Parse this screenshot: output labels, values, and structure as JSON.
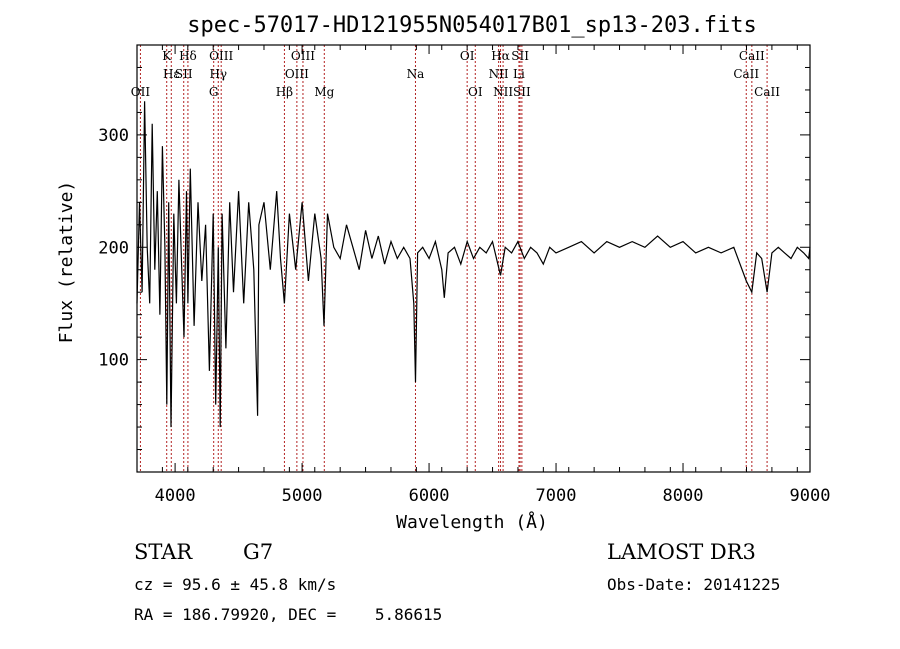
{
  "chart_data": {
    "type": "line",
    "title": "spec-57017-HD121955N054017B01_sp13-203.fits",
    "xlabel": "Wavelength (Å)",
    "ylabel": "Flux (relative)",
    "xlim": [
      3700,
      9000
    ],
    "ylim": [
      0,
      380
    ],
    "xticks": [
      4000,
      5000,
      6000,
      7000,
      8000,
      9000
    ],
    "yticks": [
      100,
      200,
      300
    ],
    "grid": false,
    "line_color": "#000000",
    "marker_color": "#b22222",
    "spectrum": {
      "name": "flux",
      "x": [
        3700,
        3720,
        3740,
        3760,
        3780,
        3800,
        3820,
        3840,
        3860,
        3880,
        3900,
        3920,
        3935,
        3950,
        3968,
        3990,
        4010,
        4030,
        4050,
        4070,
        4090,
        4101,
        4120,
        4150,
        4180,
        4210,
        4240,
        4270,
        4300,
        4320,
        4340,
        4355,
        4370,
        4400,
        4430,
        4460,
        4500,
        4540,
        4580,
        4620,
        4650,
        4660,
        4700,
        4750,
        4800,
        4830,
        4861,
        4900,
        4950,
        5000,
        5050,
        5100,
        5150,
        5173,
        5200,
        5250,
        5300,
        5350,
        5400,
        5450,
        5500,
        5550,
        5600,
        5650,
        5700,
        5750,
        5800,
        5850,
        5880,
        5893,
        5910,
        5950,
        6000,
        6050,
        6100,
        6120,
        6150,
        6200,
        6250,
        6300,
        6350,
        6400,
        6450,
        6500,
        6563,
        6600,
        6650,
        6700,
        6750,
        6800,
        6850,
        6900,
        6950,
        7000,
        7100,
        7200,
        7300,
        7400,
        7500,
        7600,
        7700,
        7800,
        7900,
        8000,
        8100,
        8200,
        8300,
        8400,
        8498,
        8542,
        8580,
        8620,
        8662,
        8700,
        8750,
        8800,
        8850,
        8900,
        8950,
        8990,
        9000
      ],
      "y": [
        150,
        240,
        160,
        330,
        200,
        150,
        310,
        180,
        250,
        140,
        290,
        200,
        60,
        240,
        40,
        230,
        150,
        260,
        190,
        120,
        250,
        150,
        270,
        130,
        240,
        170,
        220,
        90,
        230,
        60,
        200,
        40,
        230,
        110,
        240,
        160,
        250,
        150,
        240,
        180,
        50,
        220,
        240,
        180,
        250,
        190,
        150,
        230,
        180,
        240,
        170,
        230,
        190,
        130,
        230,
        200,
        190,
        220,
        200,
        180,
        215,
        190,
        210,
        185,
        205,
        190,
        200,
        190,
        150,
        80,
        195,
        200,
        190,
        205,
        180,
        155,
        195,
        200,
        185,
        205,
        190,
        200,
        195,
        205,
        175,
        200,
        195,
        205,
        190,
        200,
        195,
        185,
        200,
        195,
        200,
        205,
        195,
        205,
        200,
        205,
        200,
        210,
        200,
        205,
        195,
        200,
        195,
        200,
        170,
        160,
        195,
        190,
        160,
        195,
        200,
        195,
        190,
        200,
        195,
        190,
        200
      ]
    },
    "line_markers": [
      {
        "label": "Hδ",
        "x": 4101,
        "tier": 0
      },
      {
        "label": "K",
        "x": 3934,
        "tier": 0
      },
      {
        "label": "Hε",
        "x": 3970,
        "tier": 1
      },
      {
        "label": "SII",
        "x": 4068,
        "tier": 1
      },
      {
        "label": "OII",
        "x": 3727,
        "tier": 2
      },
      {
        "label": "Hγ",
        "x": 4340,
        "tier": 1
      },
      {
        "label": "G",
        "x": 4304,
        "tier": 2
      },
      {
        "label": "OIII",
        "x": 4363,
        "tier": 0
      },
      {
        "label": "Hβ",
        "x": 4861,
        "tier": 2
      },
      {
        "label": "OIII",
        "x": 4959,
        "tier": 1
      },
      {
        "label": "OIII",
        "x": 5007,
        "tier": 0
      },
      {
        "label": "Mg",
        "x": 5175,
        "tier": 2
      },
      {
        "label": "Na",
        "x": 5893,
        "tier": 1
      },
      {
        "label": "OI",
        "x": 6300,
        "tier": 0
      },
      {
        "label": "OI",
        "x": 6364,
        "tier": 2
      },
      {
        "label": "Hα",
        "x": 6563,
        "tier": 0
      },
      {
        "label": "NII",
        "x": 6548,
        "tier": 1
      },
      {
        "label": "NII",
        "x": 6583,
        "tier": 2
      },
      {
        "label": "SII",
        "x": 6717,
        "tier": 0
      },
      {
        "label": "Li",
        "x": 6708,
        "tier": 1
      },
      {
        "label": "SII",
        "x": 6731,
        "tier": 2
      },
      {
        "label": "CaII",
        "x": 8498,
        "tier": 1
      },
      {
        "label": "CaII",
        "x": 8542,
        "tier": 0
      },
      {
        "label": "CaII",
        "x": 8662,
        "tier": 2
      }
    ]
  },
  "info": {
    "class": "STAR",
    "subclass": "G7",
    "survey": "LAMOST DR3",
    "cz": "cz = 95.6 ± 45.8 km/s",
    "obs_date": "Obs-Date: 20141225",
    "coords": "RA = 186.79920, DEC =    5.86615"
  }
}
